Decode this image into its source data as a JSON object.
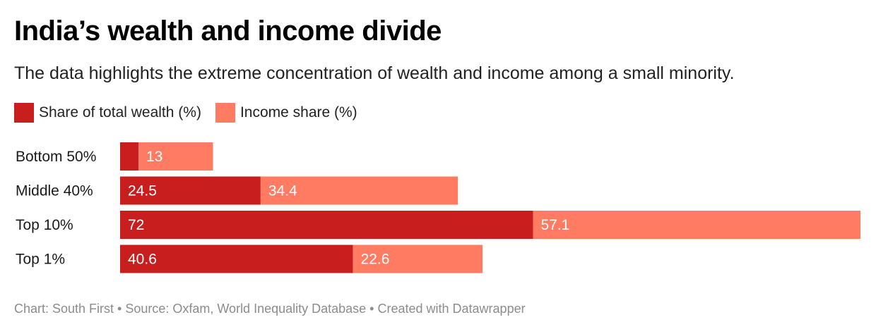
{
  "chart_data": {
    "type": "bar",
    "orientation": "horizontal",
    "stacked": true,
    "title": "India’s wealth and income divide",
    "subtitle": "The data highlights the extreme concentration of wealth and income among a small minority.",
    "categories": [
      "Bottom 50%",
      "Middle 40%",
      "Top 10%",
      "Top 1%"
    ],
    "series": [
      {
        "name": "Share of total wealth (%)",
        "values": [
          3.2,
          24.5,
          72,
          40.6
        ],
        "labels": [
          "",
          "24.5",
          "72",
          "40.6"
        ],
        "color": "#c81e1e"
      },
      {
        "name": "Income share (%)",
        "values": [
          13,
          34.4,
          57.1,
          22.6
        ],
        "labels": [
          "13",
          "34.4",
          "57.1",
          "22.6"
        ],
        "color": "#ff7b62"
      }
    ],
    "xlim": [
      0,
      129.1
    ],
    "grid": false,
    "legend_position": "top-left",
    "footer": "Chart: South First • Source: Oxfam, World Inequality Database • Created with Datawrapper"
  }
}
